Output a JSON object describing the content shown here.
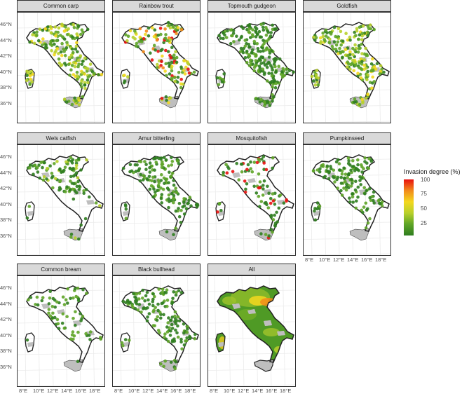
{
  "figure": {
    "lat_labels": [
      "46°N",
      "44°N",
      "42°N",
      "40°N",
      "38°N",
      "36°N"
    ],
    "lon_labels": [
      "8°E",
      "10°E",
      "12°E",
      "14°E",
      "16°E",
      "18°E"
    ],
    "legend": {
      "title": "Invasion degree (%)",
      "ticks": [
        "100",
        "75",
        "50",
        "25"
      ],
      "colors": [
        "#e8110f",
        "#f28b1b",
        "#f3d81e",
        "#b8d02b",
        "#5ea427",
        "#2f7d1f"
      ]
    },
    "species": [
      {
        "name": "Common carp",
        "pattern": "dense-mixed"
      },
      {
        "name": "Rainbow trout",
        "pattern": "mixed-hot"
      },
      {
        "name": "Topmouth gudgeon",
        "pattern": "dense-green"
      },
      {
        "name": "Goldfish",
        "pattern": "dense-mixed"
      },
      {
        "name": "Wels catfish",
        "pattern": "north"
      },
      {
        "name": "Amur bitterling",
        "pattern": "central"
      },
      {
        "name": "Mosquitofish",
        "pattern": "sparse-hot"
      },
      {
        "name": "Pumpkinseed",
        "pattern": "central"
      },
      {
        "name": "Common bream",
        "pattern": "sparse"
      },
      {
        "name": "Black bullhead",
        "pattern": "central"
      },
      {
        "name": "All",
        "pattern": "surface"
      }
    ]
  }
}
